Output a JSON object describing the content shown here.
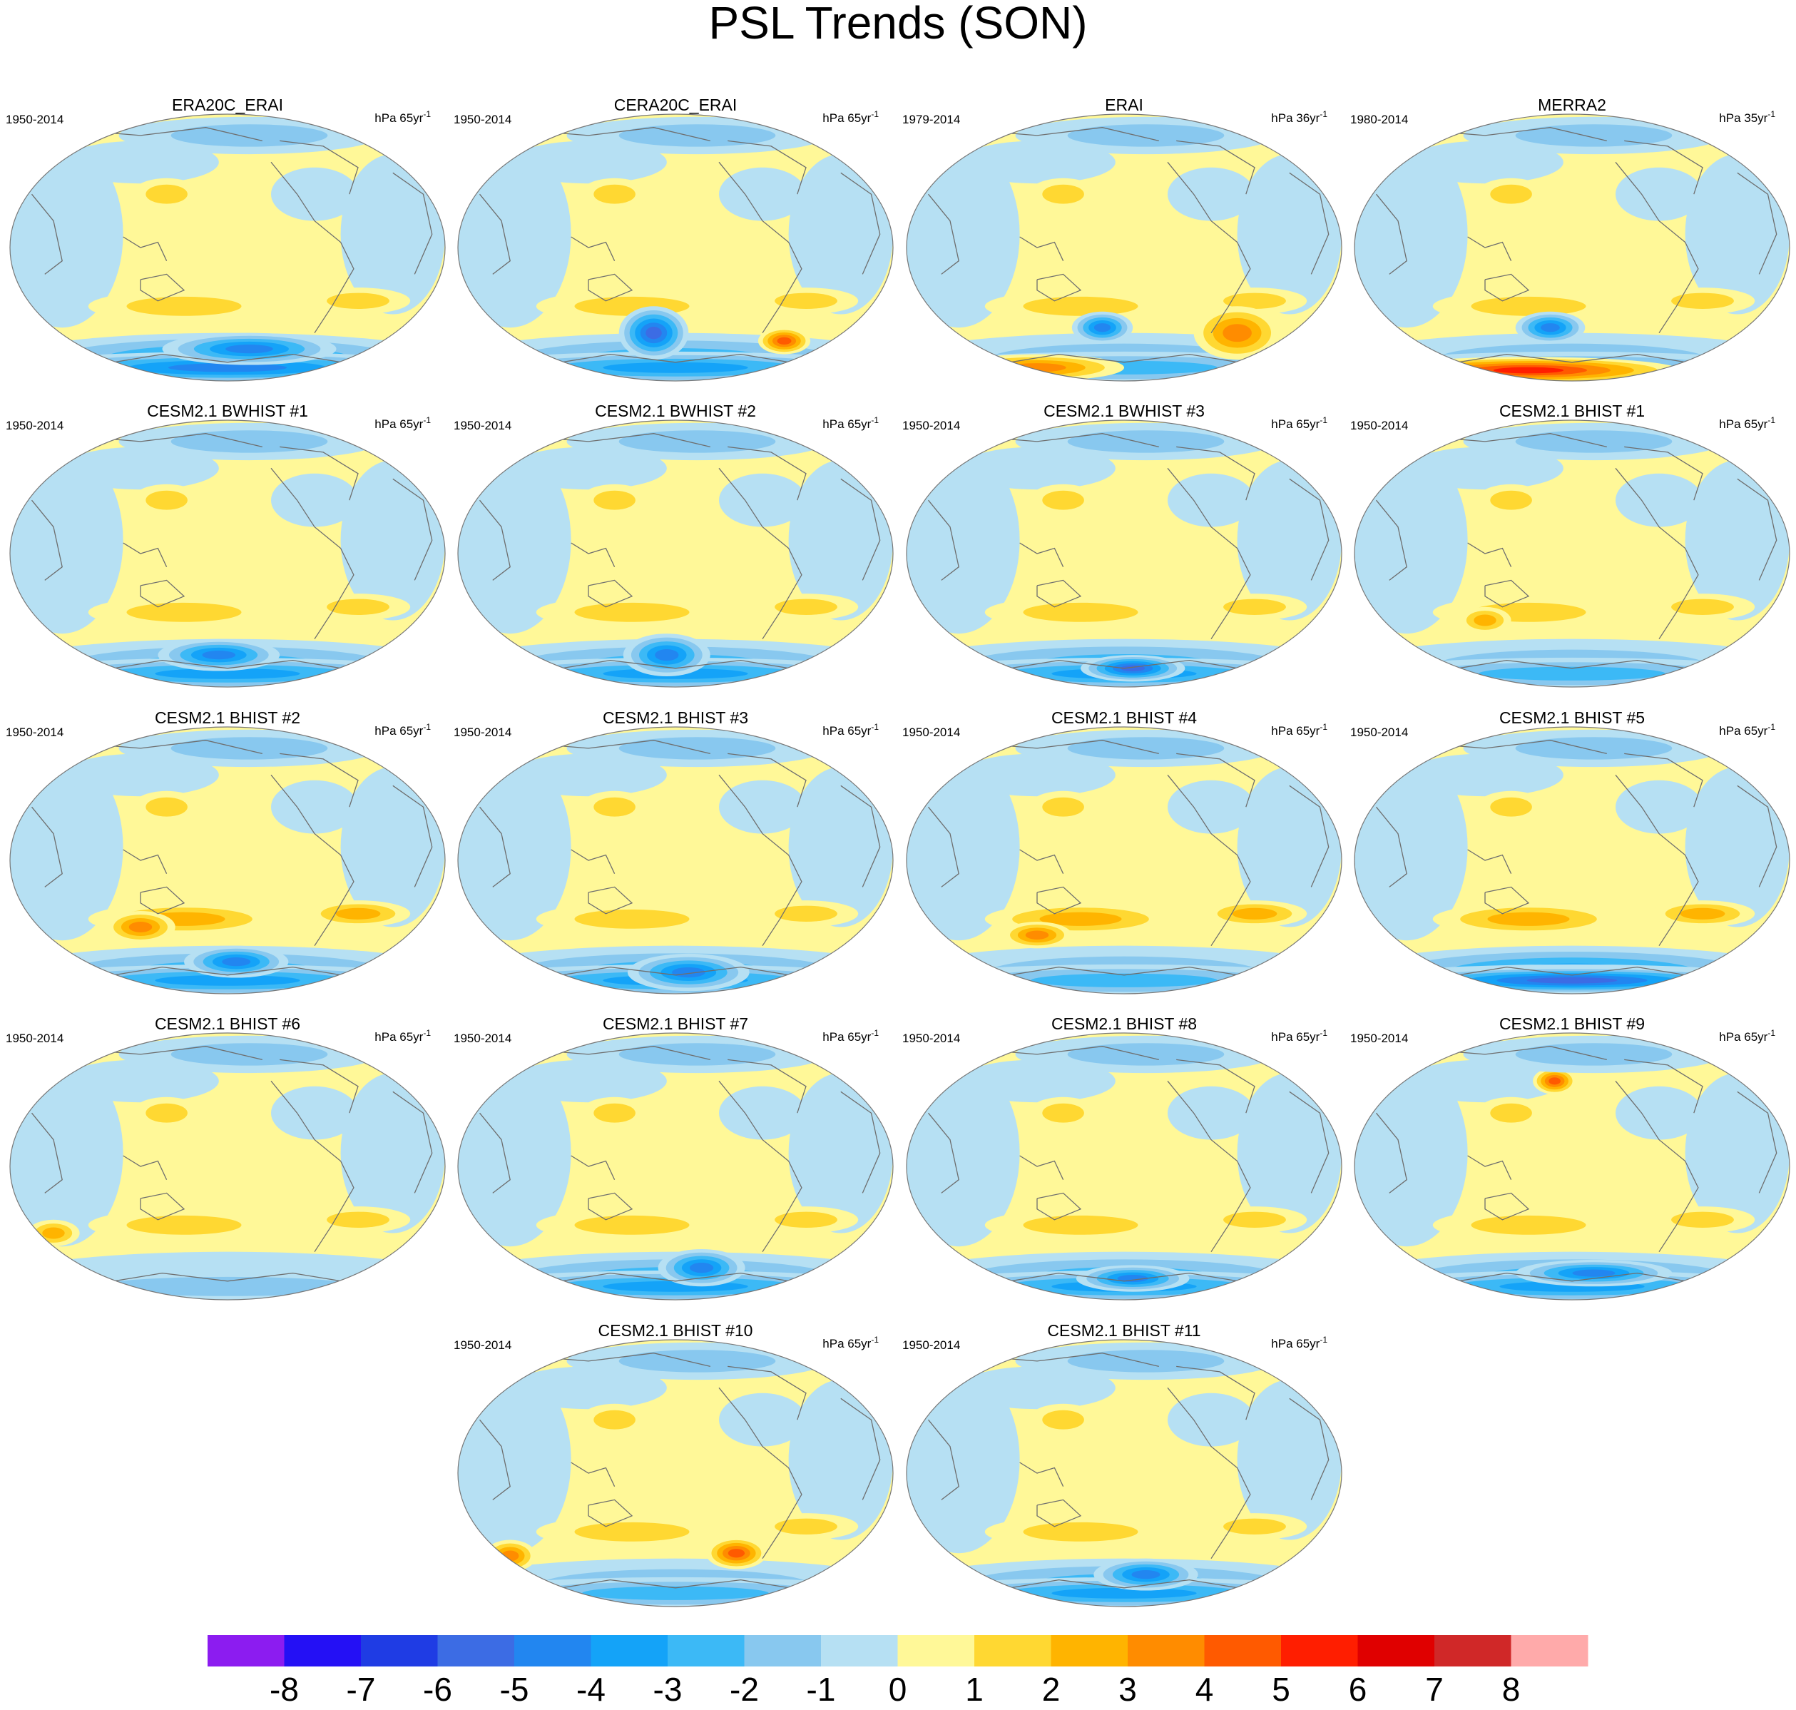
{
  "figure_title": "PSL Trends (SON)",
  "colorbar": {
    "labels": [
      "-8",
      "-7",
      "-6",
      "-5",
      "-4",
      "-3",
      "-2",
      "-1",
      "0",
      "1",
      "2",
      "3",
      "4",
      "5",
      "6",
      "7",
      "8"
    ],
    "colors": [
      "#8c1cf0",
      "#2410f5",
      "#1f3ce4",
      "#3c6ce4",
      "#2286f0",
      "#14a3f8",
      "#3cb9f6",
      "#88c8ef",
      "#b6e0f3",
      "#fff898",
      "#ffd832",
      "#ffb400",
      "#ff8c00",
      "#ff5a00",
      "#ff1e00",
      "#e00000",
      "#d02828",
      "#ffaaaa"
    ]
  },
  "panels": [
    {
      "title": "ERA20C_ERAI",
      "period": "1950-2014",
      "units_base": "hPa 65yr",
      "units_exp": "-1"
    },
    {
      "title": "CERA20C_ERAI",
      "period": "1950-2014",
      "units_base": "hPa 65yr",
      "units_exp": "-1"
    },
    {
      "title": "ERAI",
      "period": "1979-2014",
      "units_base": "hPa 36yr",
      "units_exp": "-1"
    },
    {
      "title": "MERRA2",
      "period": "1980-2014",
      "units_base": "hPa 35yr",
      "units_exp": "-1"
    },
    {
      "title": "CESM2.1 BWHIST #1",
      "period": "1950-2014",
      "units_base": "hPa 65yr",
      "units_exp": "-1"
    },
    {
      "title": "CESM2.1 BWHIST #2",
      "period": "1950-2014",
      "units_base": "hPa 65yr",
      "units_exp": "-1"
    },
    {
      "title": "CESM2.1 BWHIST #3",
      "period": "1950-2014",
      "units_base": "hPa 65yr",
      "units_exp": "-1"
    },
    {
      "title": "CESM2.1 BHIST #1",
      "period": "1950-2014",
      "units_base": "hPa 65yr",
      "units_exp": "-1"
    },
    {
      "title": "CESM2.1 BHIST #2",
      "period": "1950-2014",
      "units_base": "hPa 65yr",
      "units_exp": "-1"
    },
    {
      "title": "CESM2.1 BHIST #3",
      "period": "1950-2014",
      "units_base": "hPa 65yr",
      "units_exp": "-1"
    },
    {
      "title": "CESM2.1 BHIST #4",
      "period": "1950-2014",
      "units_base": "hPa 65yr",
      "units_exp": "-1"
    },
    {
      "title": "CESM2.1 BHIST #5",
      "period": "1950-2014",
      "units_base": "hPa 65yr",
      "units_exp": "-1"
    },
    {
      "title": "CESM2.1 BHIST #6",
      "period": "1950-2014",
      "units_base": "hPa 65yr",
      "units_exp": "-1"
    },
    {
      "title": "CESM2.1 BHIST #7",
      "period": "1950-2014",
      "units_base": "hPa 65yr",
      "units_exp": "-1"
    },
    {
      "title": "CESM2.1 BHIST #8",
      "period": "1950-2014",
      "units_base": "hPa 65yr",
      "units_exp": "-1"
    },
    {
      "title": "CESM2.1 BHIST #9",
      "period": "1950-2014",
      "units_base": "hPa 65yr",
      "units_exp": "-1"
    },
    {
      "title": "CESM2.1 BHIST #10",
      "period": "1950-2014",
      "units_base": "hPa 65yr",
      "units_exp": "-1"
    },
    {
      "title": "CESM2.1 BHIST #11",
      "period": "1950-2014",
      "units_base": "hPa 65yr",
      "units_exp": "-1"
    }
  ],
  "chart_data": {
    "type": "heatmap",
    "title": "PSL Trends (SON)",
    "variable": "PSL",
    "season": "SON",
    "projection": "global map, Pacific-centered",
    "contour_levels": [
      -8,
      -7,
      -6,
      -5,
      -4,
      -3,
      -2,
      -1,
      0,
      1,
      2,
      3,
      4,
      5,
      6,
      7,
      8
    ],
    "panel_titles": [
      "ERA20C_ERAI",
      "CERA20C_ERAI",
      "ERAI",
      "MERRA2",
      "CESM2.1 BWHIST #1",
      "CESM2.1 BWHIST #2",
      "CESM2.1 BWHIST #3",
      "CESM2.1 BHIST #1",
      "CESM2.1 BHIST #2",
      "CESM2.1 BHIST #3",
      "CESM2.1 BHIST #4",
      "CESM2.1 BHIST #5",
      "CESM2.1 BHIST #6",
      "CESM2.1 BHIST #7",
      "CESM2.1 BHIST #8",
      "CESM2.1 BHIST #9",
      "CESM2.1 BHIST #10",
      "CESM2.1 BHIST #11"
    ],
    "approx_extremes": [
      {
        "panel": "ERA20C_ERAI",
        "min": -5,
        "max": 3
      },
      {
        "panel": "CERA20C_ERAI",
        "min": -6,
        "max": 6
      },
      {
        "panel": "ERAI",
        "min": -5,
        "max": 5
      },
      {
        "panel": "MERRA2",
        "min": -5,
        "max": 7
      },
      {
        "panel": "CESM2.1 BWHIST #1",
        "min": -5,
        "max": 3
      },
      {
        "panel": "CESM2.1 BWHIST #2",
        "min": -5,
        "max": 3
      },
      {
        "panel": "CESM2.1 BWHIST #3",
        "min": -6,
        "max": 3
      },
      {
        "panel": "CESM2.1 BHIST #1",
        "min": -4,
        "max": 3
      },
      {
        "panel": "CESM2.1 BHIST #2",
        "min": -5,
        "max": 4
      },
      {
        "panel": "CESM2.1 BHIST #3",
        "min": -5,
        "max": 3
      },
      {
        "panel": "CESM2.1 BHIST #4",
        "min": -4,
        "max": 4
      },
      {
        "panel": "CESM2.1 BHIST #5",
        "min": -6,
        "max": 3
      },
      {
        "panel": "CESM2.1 BHIST #6",
        "min": -3,
        "max": 3
      },
      {
        "panel": "CESM2.1 BHIST #7",
        "min": -5,
        "max": 3
      },
      {
        "panel": "CESM2.1 BHIST #8",
        "min": -5,
        "max": 3
      },
      {
        "panel": "CESM2.1 BHIST #9",
        "min": -5,
        "max": 5
      },
      {
        "panel": "CESM2.1 BHIST #10",
        "min": -6,
        "max": 5
      },
      {
        "panel": "CESM2.1 BHIST #11",
        "min": -5,
        "max": 3
      }
    ]
  }
}
